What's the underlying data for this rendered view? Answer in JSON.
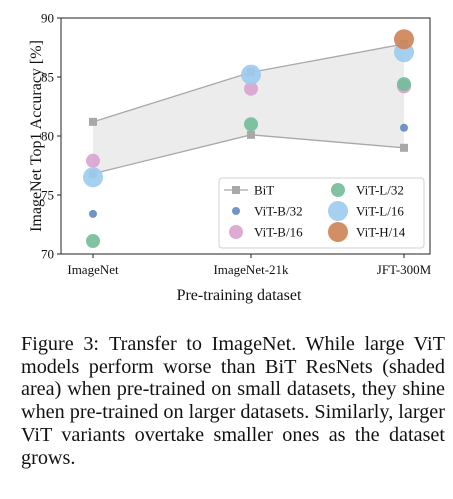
{
  "chart_data": {
    "type": "scatter",
    "ylabel": "ImageNet Top1 Accuracy [%]",
    "xlabel": "Pre-training dataset",
    "categories": [
      "ImageNet",
      "ImageNet-21k",
      "JFT-300M"
    ],
    "ylim": [
      70,
      90
    ],
    "yticks": [
      70,
      75,
      80,
      85,
      90
    ],
    "shaded_area": "BiT ResNets",
    "legend_position": "bottom-right",
    "series": [
      {
        "name": "BiT",
        "marker": "square",
        "color": "#a8a8a8",
        "line": true,
        "values": [
          81.2,
          85.4,
          87.8
        ]
      },
      {
        "name": "BiT",
        "marker": "square",
        "color": "#a8a8a8",
        "line": true,
        "legend": false,
        "values": [
          76.8,
          80.1,
          79.0
        ]
      },
      {
        "name": "ViT-B/32",
        "marker": "circle",
        "color": "#5f8bbd",
        "size": "small",
        "values": [
          73.4,
          null,
          80.7
        ]
      },
      {
        "name": "ViT-B/16",
        "marker": "circle",
        "color": "#d9a3cf",
        "size": "medium",
        "values": [
          77.9,
          84.0,
          84.2
        ]
      },
      {
        "name": "ViT-L/32",
        "marker": "circle",
        "color": "#72bd99",
        "size": "medium",
        "values": [
          71.1,
          81.0,
          84.4
        ]
      },
      {
        "name": "ViT-L/16",
        "marker": "circle",
        "color": "#9ccbee",
        "size": "large",
        "values": [
          76.5,
          85.2,
          87.1
        ]
      },
      {
        "name": "ViT-H/14",
        "marker": "circle",
        "color": "#cd8354",
        "size": "large",
        "values": [
          null,
          null,
          88.2
        ]
      }
    ]
  },
  "caption": {
    "label": "Figure 3:",
    "text": "Transfer to ImageNet.  While large ViT models perform worse than BiT ResNets (shaded area) when pre-trained on small datasets, they shine when pre-trained on larger datasets. Similarly, larger ViT variants overtake smaller ones as the dataset grows."
  }
}
